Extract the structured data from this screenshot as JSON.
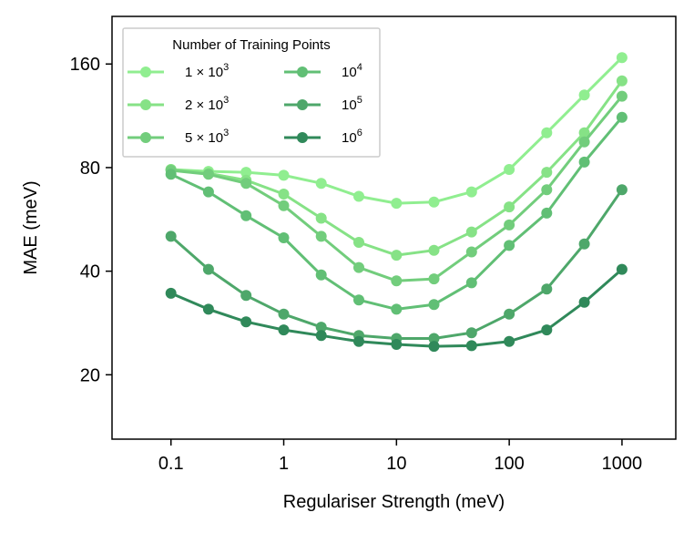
{
  "chart_data": {
    "type": "line",
    "xscale": "log",
    "yscale": "log",
    "xlabel": "Regulariser Strength (meV)",
    "ylabel": "MAE (meV)",
    "xlim": [
      0.03,
      3000
    ],
    "ylim": [
      13,
      220
    ],
    "xticks": [
      {
        "value": 0.1,
        "label": "0.1"
      },
      {
        "value": 1,
        "label": "1"
      },
      {
        "value": 10,
        "label": "10"
      },
      {
        "value": 100,
        "label": "100"
      },
      {
        "value": 1000,
        "label": "1000"
      }
    ],
    "yticks": [
      {
        "value": 20,
        "label": "20"
      },
      {
        "value": 40,
        "label": "40"
      },
      {
        "value": 80,
        "label": "80"
      },
      {
        "value": 160,
        "label": "160"
      }
    ],
    "grid": false,
    "legend": {
      "title": "Number of Training Points",
      "position": "top-left",
      "columns": 2
    },
    "x": [
      0.1,
      0.215,
      0.464,
      1,
      2.15,
      4.64,
      10,
      21.5,
      46.4,
      100,
      215,
      464,
      1000
    ],
    "series": [
      {
        "name": "1×10³",
        "mantissa": "1",
        "exponent": "3",
        "color": "#90ee90",
        "values": [
          79,
          78,
          77.5,
          76,
          72,
          66,
          63,
          63.5,
          68,
          79,
          101,
          130,
          167
        ]
      },
      {
        "name": "2×10³",
        "mantissa": "2",
        "exponent": "3",
        "color": "#86e286",
        "values": [
          79,
          77,
          73.5,
          67,
          57,
          48.5,
          44.5,
          46,
          52,
          61.5,
          77.5,
          101,
          143
        ]
      },
      {
        "name": "5×10³",
        "mantissa": "5",
        "exponent": "3",
        "color": "#72cd7c",
        "values": [
          78.5,
          76.5,
          72,
          62,
          50.5,
          41,
          37.5,
          38,
          45.5,
          54.5,
          69,
          95,
          129
        ]
      },
      {
        "name": "10⁴",
        "base": "10",
        "exponent": "4",
        "color": "#61bf75",
        "values": [
          76.5,
          68,
          58,
          50,
          39,
          33,
          31,
          32,
          37,
          47.5,
          59,
          83,
          112
        ]
      },
      {
        "name": "10⁵",
        "base": "10",
        "exponent": "5",
        "color": "#4ea76a",
        "values": [
          50.5,
          40.5,
          34,
          30,
          27.5,
          26,
          25.5,
          25.5,
          26.5,
          30,
          35.5,
          48,
          69
        ]
      },
      {
        "name": "10⁶",
        "base": "10",
        "exponent": "6",
        "color": "#30895a",
        "values": [
          34.5,
          31,
          28.5,
          27,
          26,
          25,
          24.5,
          24.2,
          24.3,
          25,
          27,
          32.5,
          40.5
        ]
      }
    ]
  }
}
